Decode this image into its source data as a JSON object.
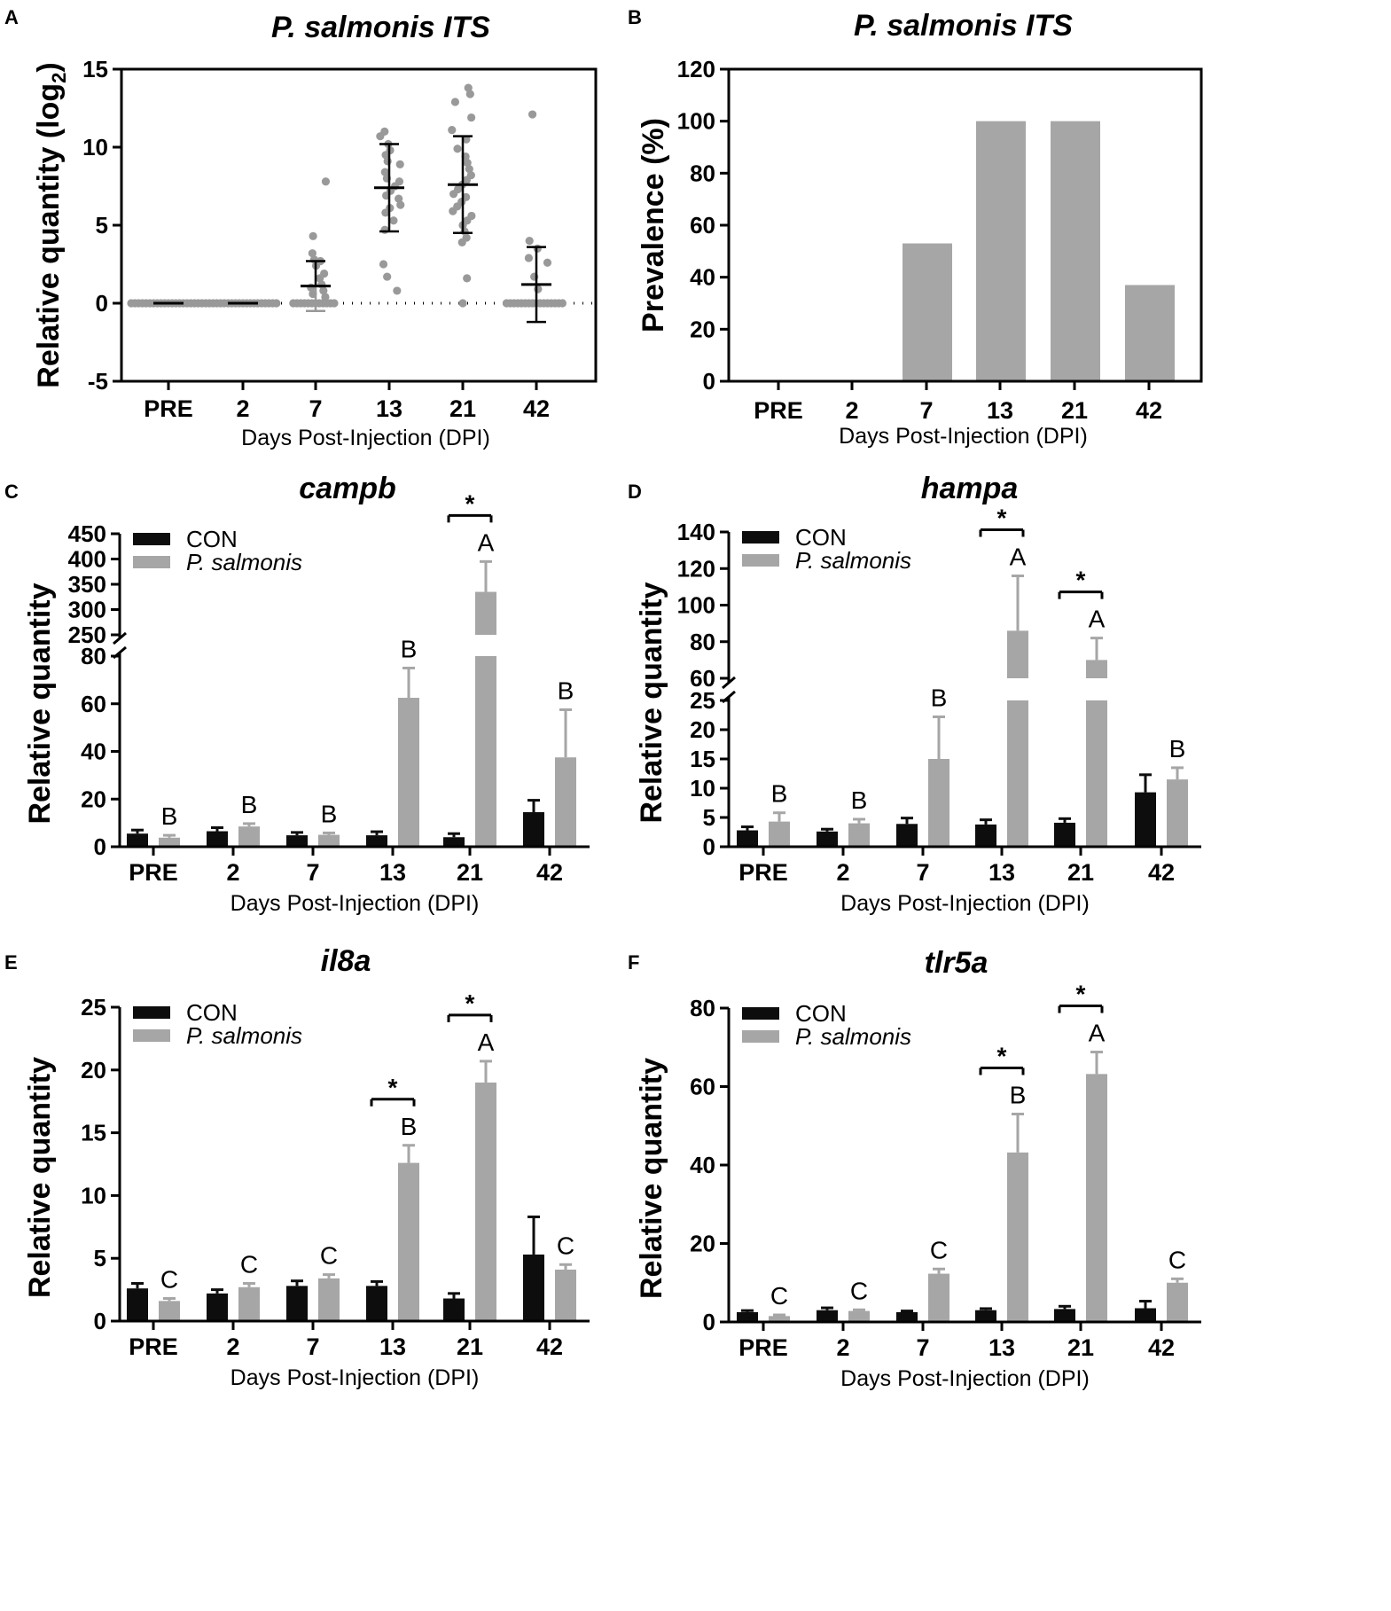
{
  "colors": {
    "control": "#0d0d0d",
    "infected": "#a6a6a6",
    "axis": "#000000",
    "points": "#999999"
  },
  "chart_data": [
    {
      "panel": "A",
      "type": "scatter",
      "title": "P. salmonis ITS",
      "ylabel": "Relative quantity (log2)",
      "xlabel": "Days Post-Injection (DPI)",
      "categories": [
        "PRE",
        "2",
        "7",
        "13",
        "21",
        "42"
      ],
      "ylim": [
        -5,
        15
      ],
      "yticks": [
        "-5",
        "0",
        "5",
        "10",
        "15"
      ],
      "reference_line": 0,
      "mean": [
        0,
        0,
        1.1,
        7.4,
        7.6,
        1.2
      ],
      "sd": [
        0,
        0,
        1.6,
        2.8,
        3.1,
        2.4
      ],
      "points": [
        [
          0,
          0,
          0,
          0,
          0,
          0,
          0,
          0,
          0,
          0,
          0,
          0,
          0,
          0,
          0,
          0,
          0,
          0,
          0,
          0
        ],
        [
          0,
          0,
          0,
          0,
          0,
          0,
          0,
          0,
          0,
          0,
          0,
          0,
          0,
          0,
          0,
          0,
          0,
          0,
          0,
          0
        ],
        [
          7.8,
          4.3,
          3.2,
          2.8,
          2.7,
          2.4,
          1.9,
          1.6,
          1.2,
          1.0,
          0.8,
          0.6,
          0.4,
          0,
          0,
          0,
          0,
          0,
          0,
          0,
          0,
          0,
          0,
          0,
          0
        ],
        [
          11.0,
          10.7,
          10.2,
          9.8,
          9.5,
          9.1,
          8.9,
          8.4,
          8.0,
          7.8,
          7.5,
          7.2,
          6.9,
          6.7,
          6.3,
          6.1,
          5.8,
          5.3,
          4.7,
          2.5,
          1.7,
          0.8
        ],
        [
          13.8,
          13.4,
          12.9,
          11.9,
          11.1,
          10.5,
          9.9,
          9.4,
          9.0,
          8.6,
          8.2,
          7.9,
          7.6,
          7.3,
          7.0,
          6.8,
          6.5,
          6.2,
          5.9,
          5.6,
          5.3,
          5.0,
          4.6,
          4.2,
          3.9,
          1.6,
          0
        ],
        [
          12.1,
          4.0,
          3.5,
          2.9,
          2.6,
          1.7,
          0.9,
          0,
          0,
          0,
          0,
          0,
          0,
          0,
          0,
          0,
          0,
          0,
          0,
          0,
          0,
          0,
          0
        ]
      ]
    },
    {
      "panel": "B",
      "type": "bar",
      "title": "P. salmonis ITS",
      "ylabel": "Prevalence (%)",
      "xlabel": "Days Post-Injection (DPI)",
      "categories": [
        "PRE",
        "2",
        "7",
        "13",
        "21",
        "42"
      ],
      "values": [
        0,
        0,
        53,
        100,
        100,
        37
      ],
      "ylim": [
        0,
        120
      ],
      "yticks": [
        "0",
        "20",
        "40",
        "60",
        "80",
        "100",
        "120"
      ]
    },
    {
      "panel": "C",
      "type": "bar",
      "title": "campb",
      "ylabel": "Relative quantity",
      "xlabel": "Days Post-Injection (DPI)",
      "categories": [
        "PRE",
        "2",
        "7",
        "13",
        "21",
        "42"
      ],
      "legend": [
        "CON",
        "P. salmonis"
      ],
      "series": [
        {
          "name": "CON",
          "values": [
            5.5,
            6.5,
            4.8,
            4.8,
            4.0,
            14.5
          ],
          "errors": [
            1.5,
            1.5,
            1.2,
            1.5,
            1.5,
            5.0
          ]
        },
        {
          "name": "P. salmonis",
          "values": [
            3.8,
            8.5,
            5.0,
            62.5,
            335,
            37.5
          ],
          "errors": [
            1.0,
            1.2,
            0.8,
            12.5,
            60,
            20
          ]
        }
      ],
      "letters": [
        "B",
        "B",
        "B",
        "B",
        "A",
        "B"
      ],
      "significance": [
        4
      ],
      "axis_break": {
        "lower_max": 80,
        "upper_min": 250
      },
      "yticks_lower": [
        "0",
        "20",
        "40",
        "60",
        "80"
      ],
      "yticks_upper": [
        "250",
        "300",
        "350",
        "400",
        "450"
      ]
    },
    {
      "panel": "D",
      "type": "bar",
      "title": "hampa",
      "ylabel": "Relative quantity",
      "xlabel": "Days Post-Injection (DPI)",
      "categories": [
        "PRE",
        "2",
        "7",
        "13",
        "21",
        "42"
      ],
      "legend": [
        "CON",
        "P. salmonis"
      ],
      "series": [
        {
          "name": "CON",
          "values": [
            2.8,
            2.6,
            3.9,
            3.8,
            4.1,
            9.3
          ],
          "errors": [
            0.6,
            0.4,
            1.0,
            0.8,
            0.7,
            3.0
          ]
        },
        {
          "name": "P. salmonis",
          "values": [
            4.3,
            4.0,
            15.0,
            86,
            70,
            11.5
          ],
          "errors": [
            1.5,
            0.7,
            7.2,
            30,
            12,
            2.0
          ]
        }
      ],
      "letters": [
        "B",
        "B",
        "B",
        "A",
        "A",
        "B"
      ],
      "significance": [
        3,
        4
      ],
      "axis_break": {
        "lower_max": 25,
        "upper_min": 60
      },
      "yticks_lower": [
        "0",
        "5",
        "10",
        "15",
        "20",
        "25"
      ],
      "yticks_upper": [
        "60",
        "80",
        "100",
        "120",
        "140"
      ]
    },
    {
      "panel": "E",
      "type": "bar",
      "title": "il8a",
      "ylabel": "Relative quantity",
      "xlabel": "Days Post-Injection (DPI)",
      "categories": [
        "PRE",
        "2",
        "7",
        "13",
        "21",
        "42"
      ],
      "legend": [
        "CON",
        "P. salmonis"
      ],
      "series": [
        {
          "name": "CON",
          "values": [
            2.6,
            2.2,
            2.8,
            2.8,
            1.8,
            5.3
          ],
          "errors": [
            0.4,
            0.3,
            0.4,
            0.35,
            0.4,
            3.0
          ]
        },
        {
          "name": "P. salmonis",
          "values": [
            1.6,
            2.7,
            3.4,
            12.6,
            19.0,
            4.1
          ],
          "errors": [
            0.2,
            0.3,
            0.3,
            1.4,
            1.7,
            0.4
          ]
        }
      ],
      "letters": [
        "C",
        "C",
        "C",
        "B",
        "A",
        "C"
      ],
      "significance": [
        3,
        4
      ],
      "ylim": [
        0,
        25
      ],
      "yticks": [
        "0",
        "5",
        "10",
        "15",
        "20",
        "25"
      ]
    },
    {
      "panel": "F",
      "type": "bar",
      "title": "tlr5a",
      "ylabel": "Relative quantity",
      "xlabel": "Days Post-Injection (DPI)",
      "categories": [
        "PRE",
        "2",
        "7",
        "13",
        "21",
        "42"
      ],
      "legend": [
        "CON",
        "P. salmonis"
      ],
      "series": [
        {
          "name": "CON",
          "values": [
            2.5,
            3.0,
            2.5,
            3.0,
            3.3,
            3.5
          ],
          "errors": [
            0.4,
            0.6,
            0.3,
            0.4,
            0.7,
            1.8
          ]
        },
        {
          "name": "P. salmonis",
          "values": [
            1.5,
            2.8,
            12.3,
            43.2,
            63.2,
            10.0
          ],
          "errors": [
            0.3,
            0.3,
            1.2,
            9.8,
            5.6,
            1.0
          ]
        }
      ],
      "letters": [
        "C",
        "C",
        "C",
        "B",
        "A",
        "C"
      ],
      "significance": [
        3,
        4
      ],
      "ylim": [
        0,
        80
      ],
      "yticks": [
        "0",
        "20",
        "40",
        "60",
        "80"
      ]
    }
  ]
}
